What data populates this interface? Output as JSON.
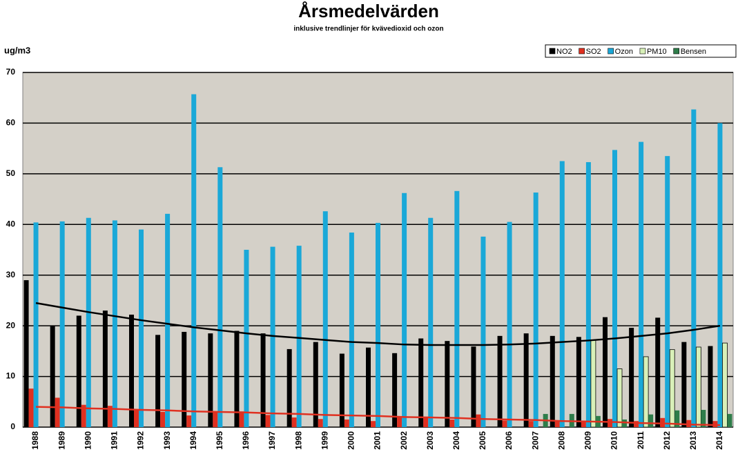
{
  "chart_data": {
    "type": "bar",
    "title": "Årsmedelvärden",
    "subtitle": "inklusive trendlinjer för kvävedioxid och ozon",
    "y_label": "ug/m3",
    "categories": [
      "1988",
      "1989",
      "1990",
      "1991",
      "1992",
      "1993",
      "1994",
      "1995",
      "1996",
      "1997",
      "1998",
      "1999",
      "2000",
      "2001",
      "2002",
      "2003",
      "2004",
      "2005",
      "2006",
      "2007",
      "2008",
      "2009",
      "2010",
      "2011",
      "2012",
      "2013",
      "2014"
    ],
    "series": [
      {
        "name": "NO2",
        "color": "#000000",
        "values": [
          29,
          20,
          22,
          23,
          22.2,
          18.2,
          18.8,
          18.5,
          19,
          18.5,
          15.4,
          16.8,
          14.5,
          15.7,
          14.6,
          17.5,
          17,
          15.9,
          18,
          18.5,
          18,
          17.8,
          21.7,
          19.6,
          21.6,
          16.8,
          16
        ]
      },
      {
        "name": "SO2",
        "color": "#e03020",
        "values": [
          7.6,
          5.8,
          4.4,
          4.2,
          3.3,
          3,
          2.3,
          3,
          3.1,
          2.4,
          1.9,
          1.6,
          1.5,
          1.2,
          2.1,
          1.8,
          1.5,
          2.5,
          1.3,
          1.2,
          1.2,
          1.1,
          1.6,
          1.2,
          1.8,
          1.4,
          1.2
        ]
      },
      {
        "name": "Ozon",
        "color": "#1aa8d8",
        "values": [
          40.4,
          40.6,
          41.3,
          40.8,
          39,
          42.1,
          65.7,
          51.3,
          35,
          35.6,
          35.8,
          42.6,
          38.4,
          40.3,
          46.2,
          41.3,
          46.6,
          37.6,
          40.5,
          46.3,
          52.5,
          52.3,
          54.7,
          56.3,
          53.5,
          62.7,
          60
        ]
      },
      {
        "name": "PM10",
        "color": "#d8f0b8",
        "values": [
          null,
          null,
          null,
          null,
          null,
          null,
          null,
          null,
          null,
          null,
          null,
          null,
          null,
          null,
          null,
          null,
          null,
          null,
          null,
          null,
          null,
          17.2,
          11.5,
          13.9,
          15.3,
          15.8,
          16.6
        ]
      },
      {
        "name": "Bensen",
        "color": "#2e7d4a",
        "values": [
          null,
          null,
          null,
          null,
          null,
          null,
          null,
          null,
          null,
          null,
          null,
          null,
          null,
          null,
          null,
          null,
          null,
          null,
          null,
          2.6,
          2.6,
          2.2,
          1.5,
          2.5,
          3.3,
          3.4,
          2.6
        ]
      }
    ],
    "trendlines": [
      {
        "color": "#000000",
        "values": [
          24.5,
          23.6,
          22.7,
          21.9,
          21.1,
          20.4,
          19.7,
          19.1,
          18.5,
          18,
          17.6,
          17.2,
          16.8,
          16.6,
          16.3,
          16.2,
          16.2,
          16.2,
          16.3,
          16.5,
          16.8,
          17.1,
          17.5,
          18,
          18.5,
          19.2,
          20
        ]
      },
      {
        "color": "#e03020",
        "values": [
          4,
          3.9,
          3.7,
          3.6,
          3.4,
          3.3,
          3.1,
          3,
          2.9,
          2.7,
          2.6,
          2.4,
          2.3,
          2.2,
          2,
          1.9,
          1.8,
          1.6,
          1.5,
          1.4,
          1.2,
          1.1,
          1,
          0.8,
          0.7,
          0.5,
          0.4
        ]
      }
    ],
    "ylim": [
      0,
      70
    ],
    "yticks": [
      0,
      10,
      20,
      30,
      40,
      50,
      60,
      70
    ],
    "grid": true,
    "legend": "top-right",
    "plot_background": "#d4d0c8"
  }
}
